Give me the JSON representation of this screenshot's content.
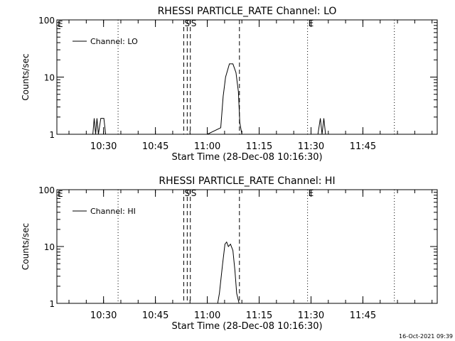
{
  "footer_timestamp": "16-Oct-2021 09:39",
  "chart_data": [
    {
      "type": "line",
      "title": "RHESSI PARTICLE_RATE Channel: LO",
      "xlabel": "Start Time (28-Dec-08 10:16:30)",
      "ylabel": "Counts/sec",
      "y_scale": "log",
      "ylim": [
        1,
        100
      ],
      "y_ticks": [
        {
          "value": 1,
          "label": "1"
        },
        {
          "value": 10,
          "label": "10"
        },
        {
          "value": 100,
          "label": "100"
        }
      ],
      "xlim_minutes": [
        616.5,
        726.5
      ],
      "x_ticks": [
        {
          "value": 630,
          "label": "10:30"
        },
        {
          "value": 645,
          "label": "10:45"
        },
        {
          "value": 660,
          "label": "11:00"
        },
        {
          "value": 675,
          "label": "11:15"
        },
        {
          "value": 690,
          "label": "11:30"
        },
        {
          "value": 705,
          "label": "11:45"
        }
      ],
      "legend": {
        "position": "top-left",
        "entries": [
          "Channel: LO"
        ]
      },
      "vertical_lines": [
        {
          "x": 634.2,
          "style": "dotted",
          "label": ""
        },
        {
          "x": 653.2,
          "style": "dashed",
          "label": "S"
        },
        {
          "x": 654.2,
          "style": "dashed",
          "label": ""
        },
        {
          "x": 655.1,
          "style": "dashed",
          "label": "S"
        },
        {
          "x": 669.3,
          "style": "dashed",
          "label": ""
        },
        {
          "x": 689.0,
          "style": "dotted",
          "label": "E"
        },
        {
          "x": 714.1,
          "style": "dotted",
          "label": ""
        }
      ],
      "edge_labels": [
        {
          "x": 616.5,
          "label": "E"
        }
      ],
      "series": [
        {
          "x": [
            619,
            626.9,
            627.3,
            627.7,
            628.1,
            628.5,
            629.2,
            629.6,
            630.1,
            630.6,
            633,
            645,
            660,
            663.9,
            664.6,
            665.3,
            666.4,
            667.4,
            668.3,
            669.0,
            669.4,
            670,
            675,
            685,
            692,
            692.7,
            693.2,
            693.7,
            694.2,
            695,
            710
          ],
          "y": [
            1,
            1,
            1.9,
            1,
            1.9,
            1,
            1.9,
            1.9,
            1.9,
            1,
            1,
            1,
            1,
            1.3,
            4.6,
            10,
            17,
            17,
            12,
            5.6,
            1.6,
            1,
            1,
            1,
            1,
            1.9,
            1,
            1.9,
            1,
            1,
            1
          ]
        }
      ]
    },
    {
      "type": "line",
      "title": "RHESSI PARTICLE_RATE Channel: HI",
      "xlabel": "Start Time (28-Dec-08 10:16:30)",
      "ylabel": "Counts/sec",
      "y_scale": "log",
      "ylim": [
        1,
        100
      ],
      "y_ticks": [
        {
          "value": 1,
          "label": "1"
        },
        {
          "value": 10,
          "label": "10"
        },
        {
          "value": 100,
          "label": "100"
        }
      ],
      "xlim_minutes": [
        616.5,
        726.5
      ],
      "x_ticks": [
        {
          "value": 630,
          "label": "10:30"
        },
        {
          "value": 645,
          "label": "10:45"
        },
        {
          "value": 660,
          "label": "11:00"
        },
        {
          "value": 675,
          "label": "11:15"
        },
        {
          "value": 690,
          "label": "11:30"
        },
        {
          "value": 705,
          "label": "11:45"
        }
      ],
      "legend": {
        "position": "top-left",
        "entries": [
          "Channel: HI"
        ]
      },
      "vertical_lines": [
        {
          "x": 634.2,
          "style": "dotted",
          "label": ""
        },
        {
          "x": 653.2,
          "style": "dashed",
          "label": "S"
        },
        {
          "x": 654.2,
          "style": "dashed",
          "label": ""
        },
        {
          "x": 655.1,
          "style": "dashed",
          "label": "S"
        },
        {
          "x": 669.3,
          "style": "dashed",
          "label": ""
        },
        {
          "x": 689.0,
          "style": "dotted",
          "label": "E"
        },
        {
          "x": 714.1,
          "style": "dotted",
          "label": ""
        }
      ],
      "edge_labels": [
        {
          "x": 616.5,
          "label": "E"
        }
      ],
      "series": [
        {
          "x": [
            619,
            650,
            663.0,
            663.5,
            664.4,
            665.1,
            665.6,
            666.1,
            666.7,
            667.4,
            668.0,
            668.5,
            669.2,
            675,
            710
          ],
          "y": [
            1,
            1,
            1,
            1.5,
            4.8,
            11,
            12,
            10,
            11,
            8.5,
            3.7,
            1.5,
            1,
            1,
            1
          ]
        }
      ]
    }
  ]
}
